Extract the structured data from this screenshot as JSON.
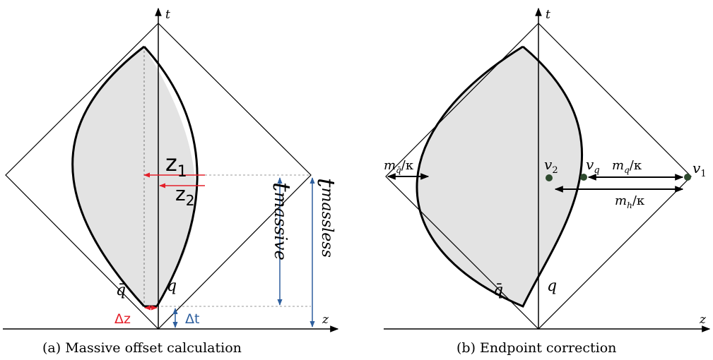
{
  "panel_a": {
    "caption": "(a) Massive offset calculation",
    "axis_t": "t",
    "axis_z": "z",
    "labels": {
      "z1_base": "z",
      "z1_sub": "1",
      "z2_base": "z",
      "z2_sub": "2",
      "t_massive_base": "t",
      "t_massive_sub": "massive",
      "t_massless_base": "t",
      "t_massless_sub": "massless",
      "qbar": "q̄",
      "q": "q",
      "delta_z": "Δz",
      "delta_t": "Δt"
    }
  },
  "panel_b": {
    "caption": "(b) Endpoint correction",
    "axis_t": "t",
    "axis_z": "z",
    "labels": {
      "m_qbar_base": "m",
      "m_qbar_sub": "q̄",
      "m_qbar_tail": "/κ",
      "v2_base": "v",
      "v2_sub": "2",
      "vq_base": "v",
      "vq_sub": "q",
      "mq_base": "m",
      "mq_sub": "q",
      "mq_tail": "/κ",
      "v1_base": "v",
      "v1_sub": "1",
      "mh_base": "m",
      "mh_sub": "h",
      "mh_tail": "/κ",
      "qbar": "q̄",
      "q": "q"
    }
  },
  "colors": {
    "red": "#e4202a",
    "blue": "#2e5f9e",
    "dot": "#2e4a2e",
    "fill": "#e3e3e3"
  }
}
